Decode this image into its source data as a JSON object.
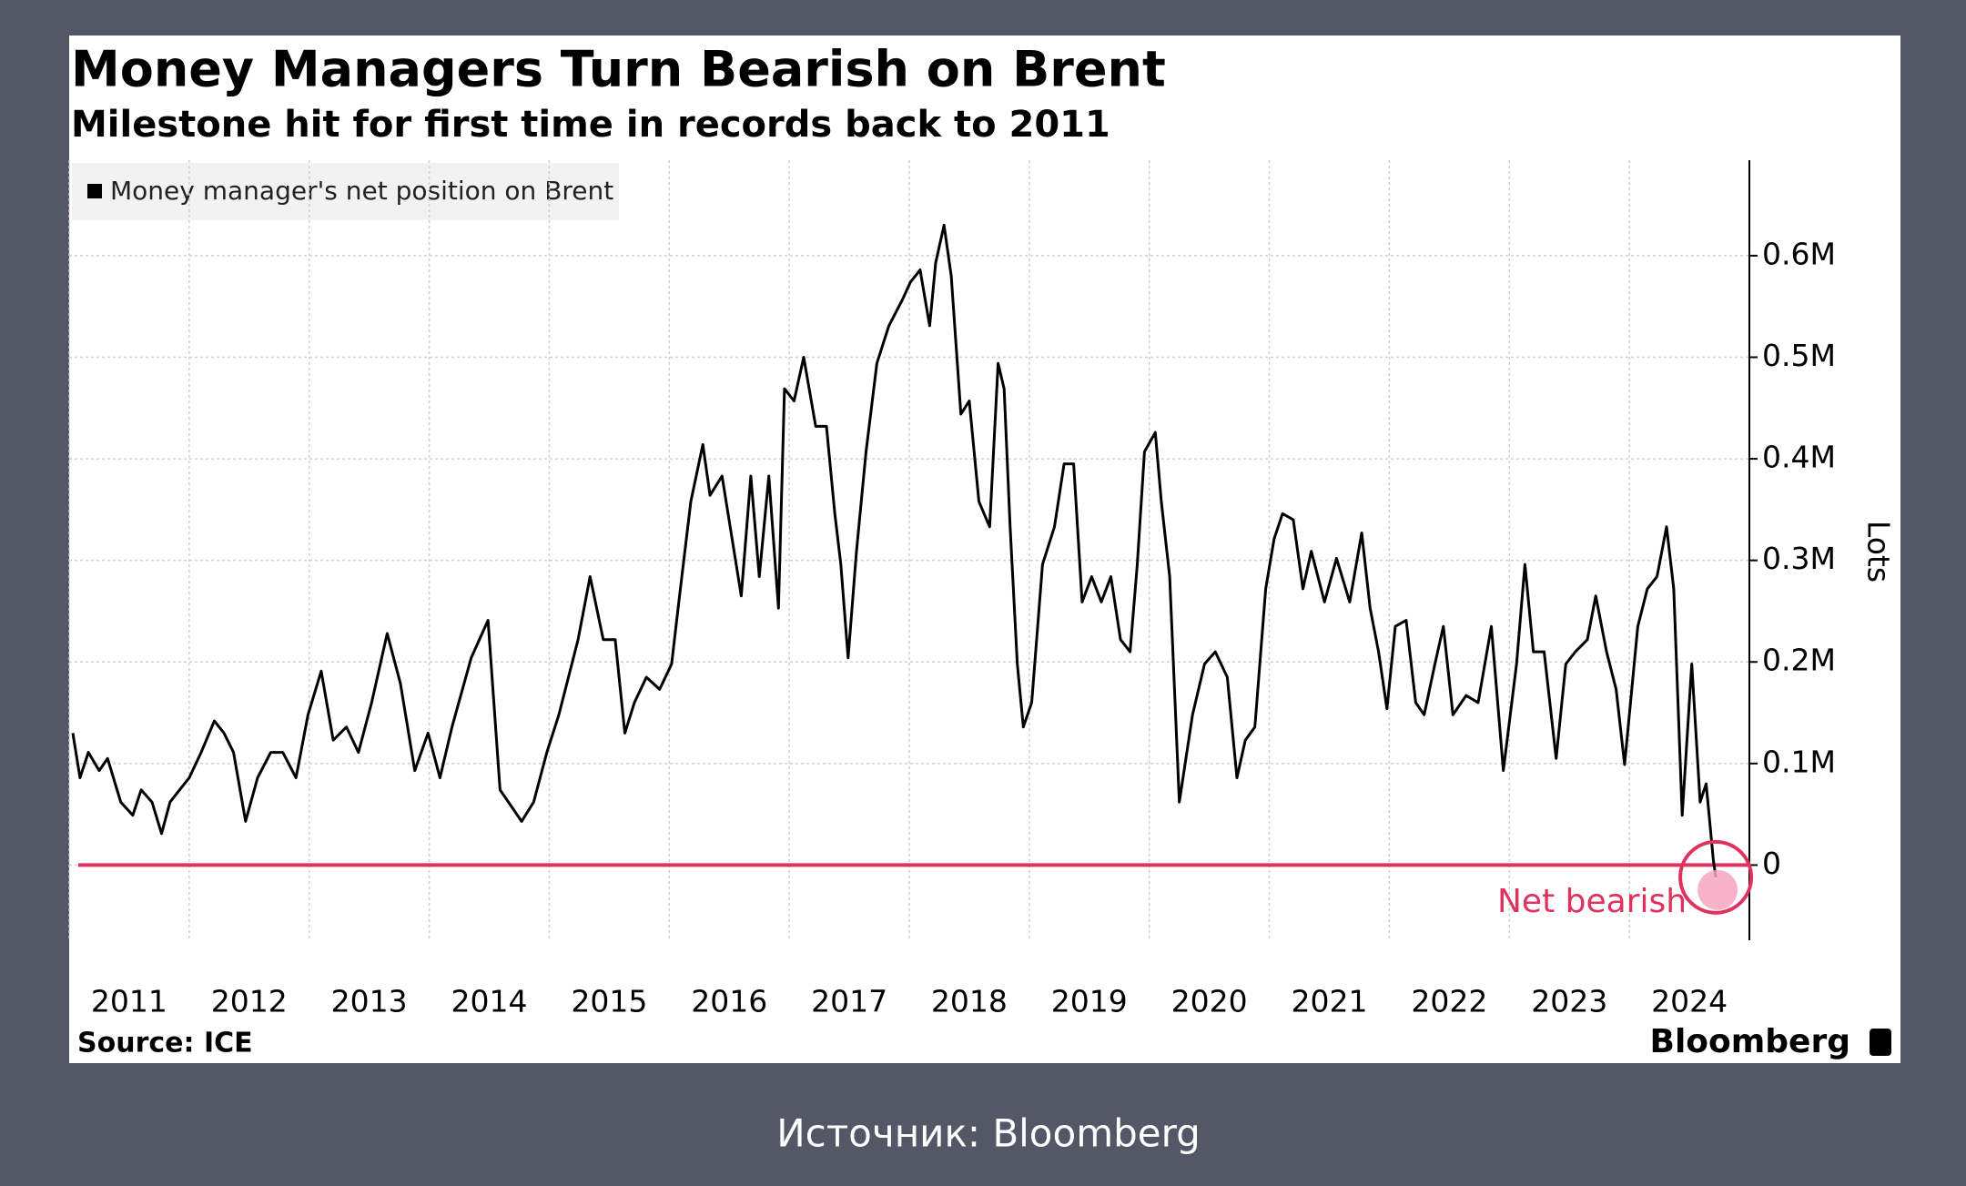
{
  "chart_data": {
    "type": "line",
    "title": "Money Managers Turn Bearish on Brent",
    "subtitle": "Milestone hit for first time in records back to 2011",
    "y_axis_label": "Lots",
    "source": "Source: ICE",
    "brand": "Bloomberg",
    "caption": "Источник: Bloomberg",
    "annotation": "Net bearish",
    "reference_line": {
      "value": 0,
      "color": "#e0325f"
    },
    "grid": true,
    "legend": "top-left",
    "xlim": [
      2011,
      2025
    ],
    "xticks": [
      2011,
      2012,
      2013,
      2014,
      2015,
      2016,
      2017,
      2018,
      2019,
      2020,
      2021,
      2022,
      2023,
      2024
    ],
    "ylim": [
      -0.074,
      0.694
    ],
    "yticks": [
      {
        "value": 0,
        "label": "0"
      },
      {
        "value": 0.1,
        "label": "0.1M"
      },
      {
        "value": 0.2,
        "label": "0.2M"
      },
      {
        "value": 0.3,
        "label": "0.3M"
      },
      {
        "value": 0.4,
        "label": "0.4M"
      },
      {
        "value": 0.5,
        "label": "0.5M"
      },
      {
        "value": 0.6,
        "label": "0.6M"
      }
    ],
    "x": [
      2011.03,
      2011.09,
      2011.16,
      2011.25,
      2011.32,
      2011.43,
      2011.53,
      2011.6,
      2011.69,
      2011.77,
      2011.84,
      2011.92,
      2012.0,
      2012.1,
      2012.21,
      2012.29,
      2012.37,
      2012.47,
      2012.57,
      2012.68,
      2012.78,
      2012.89,
      2012.99,
      2013.1,
      2013.2,
      2013.31,
      2013.41,
      2013.52,
      2013.65,
      2013.76,
      2013.88,
      2013.99,
      2014.09,
      2014.19,
      2014.35,
      2014.49,
      2014.59,
      2014.66,
      2014.77,
      2014.87,
      2014.98,
      2015.08,
      2015.24,
      2015.34,
      2015.45,
      2015.55,
      2015.63,
      2015.71,
      2015.81,
      2015.92,
      2016.02,
      2016.08,
      2016.18,
      2016.28,
      2016.34,
      2016.44,
      2016.49,
      2016.6,
      2016.68,
      2016.75,
      2016.83,
      2016.91,
      2016.96,
      2017.04,
      2017.12,
      2017.22,
      2017.31,
      2017.38,
      2017.43,
      2017.49,
      2017.56,
      2017.64,
      2017.73,
      2017.83,
      2017.94,
      2018.01,
      2018.09,
      2018.17,
      2018.22,
      2018.29,
      2018.35,
      2018.43,
      2018.5,
      2018.58,
      2018.67,
      2018.74,
      2018.79,
      2018.84,
      2018.9,
      2018.95,
      2019.02,
      2019.11,
      2019.21,
      2019.29,
      2019.37,
      2019.44,
      2019.52,
      2019.6,
      2019.68,
      2019.76,
      2019.84,
      2019.9,
      2019.96,
      2020.05,
      2020.1,
      2020.17,
      2020.25,
      2020.36,
      2020.46,
      2020.55,
      2020.65,
      2020.73,
      2020.8,
      2020.88,
      2020.97,
      2021.04,
      2021.11,
      2021.2,
      2021.28,
      2021.35,
      2021.46,
      2021.56,
      2021.67,
      2021.77,
      2021.84,
      2021.91,
      2021.98,
      2022.05,
      2022.14,
      2022.22,
      2022.29,
      2022.38,
      2022.45,
      2022.53,
      2022.64,
      2022.74,
      2022.85,
      2022.95,
      2023.06,
      2023.13,
      2023.2,
      2023.29,
      2023.39,
      2023.47,
      2023.55,
      2023.65,
      2023.72,
      2023.81,
      2023.89,
      2023.96,
      2024.07,
      2024.15,
      2024.23,
      2024.31,
      2024.37,
      2024.44,
      2024.52,
      2024.59,
      2024.64,
      2024.7,
      2024.72
    ],
    "series": [
      {
        "name": "Money manager's net position on Brent",
        "color": "#000000",
        "values": [
          0.13,
          0.086,
          0.111,
          0.093,
          0.105,
          0.062,
          0.049,
          0.074,
          0.062,
          0.031,
          0.062,
          0.074,
          0.086,
          0.111,
          0.142,
          0.13,
          0.111,
          0.043,
          0.086,
          0.111,
          0.111,
          0.086,
          0.148,
          0.191,
          0.123,
          0.136,
          0.111,
          0.16,
          0.228,
          0.179,
          0.093,
          0.13,
          0.086,
          0.136,
          0.204,
          0.241,
          0.074,
          0.062,
          0.043,
          0.062,
          0.111,
          0.148,
          0.222,
          0.284,
          0.222,
          0.222,
          0.13,
          0.16,
          0.185,
          0.173,
          0.198,
          0.259,
          0.358,
          0.414,
          0.364,
          0.383,
          0.346,
          0.265,
          0.383,
          0.284,
          0.383,
          0.253,
          0.469,
          0.457,
          0.5,
          0.432,
          0.432,
          0.346,
          0.296,
          0.204,
          0.309,
          0.407,
          0.494,
          0.531,
          0.556,
          0.574,
          0.586,
          0.531,
          0.593,
          0.63,
          0.58,
          0.444,
          0.457,
          0.358,
          0.333,
          0.494,
          0.469,
          0.333,
          0.198,
          0.136,
          0.16,
          0.296,
          0.333,
          0.395,
          0.395,
          0.259,
          0.284,
          0.259,
          0.284,
          0.222,
          0.21,
          0.296,
          0.407,
          0.426,
          0.358,
          0.284,
          0.062,
          0.148,
          0.198,
          0.21,
          0.185,
          0.086,
          0.123,
          0.136,
          0.272,
          0.321,
          0.346,
          0.34,
          0.272,
          0.309,
          0.259,
          0.302,
          0.259,
          0.327,
          0.253,
          0.21,
          0.154,
          0.235,
          0.241,
          0.16,
          0.148,
          0.198,
          0.235,
          0.148,
          0.167,
          0.16,
          0.235,
          0.093,
          0.198,
          0.296,
          0.21,
          0.21,
          0.105,
          0.198,
          0.21,
          0.222,
          0.265,
          0.21,
          0.173,
          0.099,
          0.235,
          0.272,
          0.284,
          0.333,
          0.272,
          0.049,
          0.198,
          0.062,
          0.08,
          0.005,
          -0.012
        ]
      }
    ]
  }
}
